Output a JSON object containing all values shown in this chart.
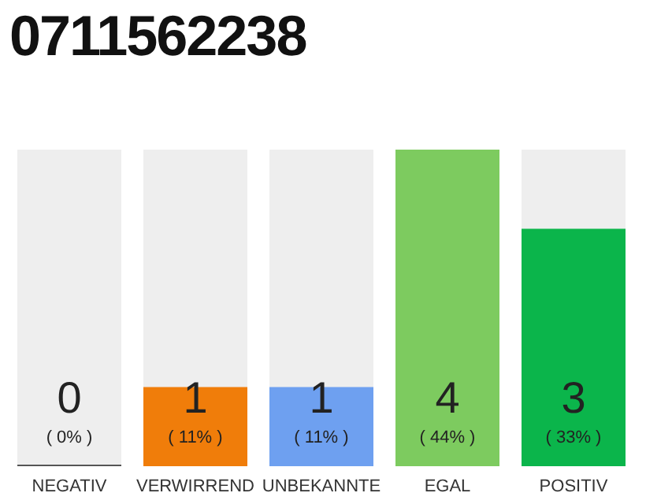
{
  "chart_data": {
    "type": "bar",
    "title": "0711562238",
    "categories": [
      "NEGATIV",
      "VERWIRREND",
      "UNBEKANNTE",
      "EGAL",
      "POSITIV"
    ],
    "values": [
      0,
      1,
      1,
      4,
      3
    ],
    "colors": [
      "#555555",
      "#f07d0a",
      "#6ea0f0",
      "#7dcb5f",
      "#0bb54b"
    ],
    "value_labels": [
      "0\n( 0% )",
      "1\n( 11% )",
      "1\n( 11% )",
      "4\n( 44% )",
      "3\n( 33% )"
    ],
    "grid": false,
    "legend": false
  }
}
